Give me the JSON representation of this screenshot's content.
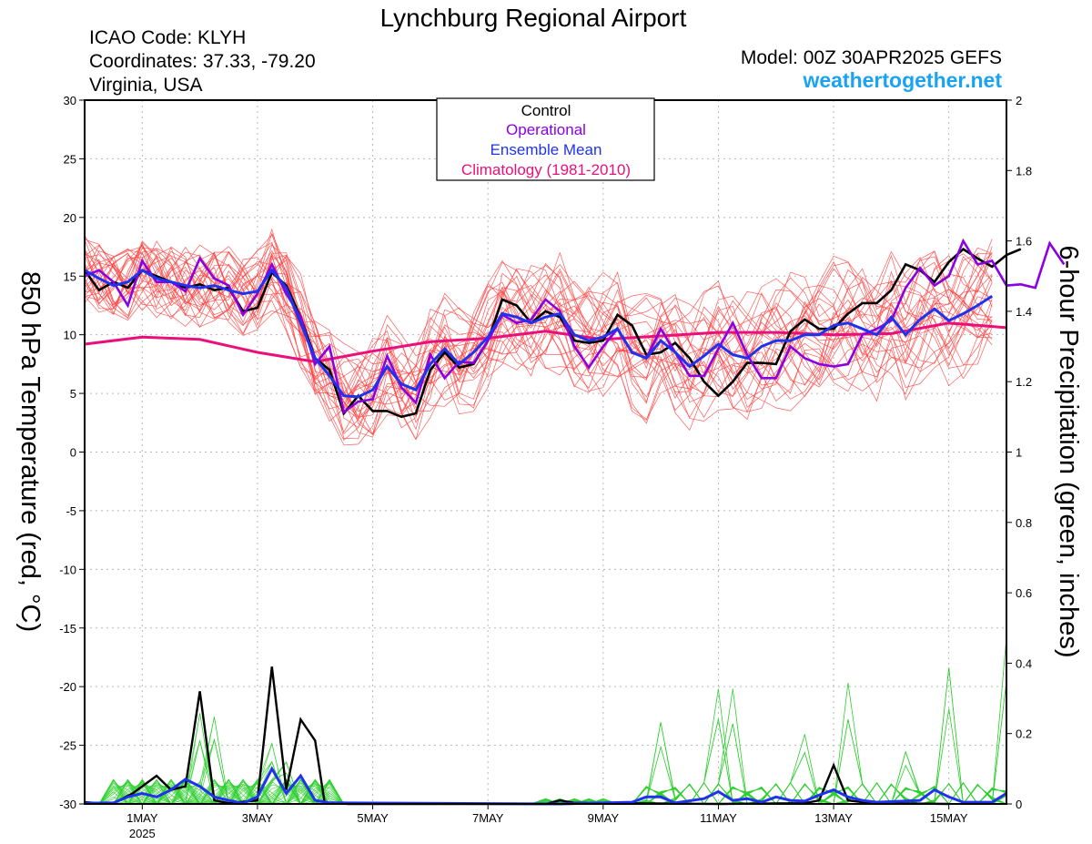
{
  "title": "Lynchburg Regional Airport",
  "station": {
    "icao_line": "ICAO Code: KLYH",
    "coords_line": "Coordinates: 37.33, -79.20",
    "region_line": "Virginia, USA"
  },
  "model_line": "Model: 00Z 30APR2025 GEFS",
  "site": "weathertogether.net",
  "chart_data": {
    "type": "line",
    "x_unit": "hours since 00Z 30APR2025",
    "x_range": [
      0,
      384
    ],
    "x_ticks": [
      {
        "x": 24,
        "label": "1MAY",
        "sub": "2025"
      },
      {
        "x": 72,
        "label": "3MAY",
        "sub": ""
      },
      {
        "x": 120,
        "label": "5MAY",
        "sub": ""
      },
      {
        "x": 168,
        "label": "7MAY",
        "sub": ""
      },
      {
        "x": 216,
        "label": "9MAY",
        "sub": ""
      },
      {
        "x": 264,
        "label": "11MAY",
        "sub": ""
      },
      {
        "x": 312,
        "label": "13MAY",
        "sub": ""
      },
      {
        "x": 360,
        "label": "15MAY",
        "sub": ""
      }
    ],
    "y_left": {
      "label": "850 hPa Temperature (red, °C)",
      "range": [
        -30,
        30
      ],
      "ticks": [
        -30,
        -25,
        -20,
        -15,
        -10,
        -5,
        0,
        5,
        10,
        15,
        20,
        25,
        30
      ]
    },
    "y_right": {
      "label": "6-hour Precipitation (green, inches)",
      "range": [
        0,
        2
      ],
      "ticks": [
        "0",
        "0.2",
        "0.4",
        "0.6",
        "0.8",
        "1",
        "1.2",
        "1.4",
        "1.6",
        "1.8",
        "2"
      ]
    },
    "legend": {
      "placement": "top-center",
      "entries": [
        {
          "name": "Control",
          "color": "#000000"
        },
        {
          "name": "Operational",
          "color": "#8b00e0"
        },
        {
          "name": "Ensemble Mean",
          "color": "#1f33ee"
        },
        {
          "name": "Climatology (1981-2010)",
          "color": "#ea0f7a"
        }
      ]
    },
    "grid": true,
    "colors": {
      "member_temp": "#ff4040",
      "member_precip": "#2ecf2e",
      "control": "#000000",
      "operational": "#8b00e0",
      "mean": "#1f33ee",
      "climatology": "#ea0f7a"
    },
    "temperature": {
      "step_hours": 6,
      "control": [
        15.5,
        13.8,
        14.5,
        14.0,
        15.5,
        15.0,
        14.5,
        14.0,
        14.3,
        13.8,
        14.0,
        12.0,
        12.3,
        15.3,
        14.2,
        11.5,
        8.0,
        7.0,
        3.3,
        4.8,
        3.5,
        3.5,
        3.0,
        3.3,
        7.0,
        8.5,
        7.2,
        7.5,
        9.5,
        13.0,
        12.5,
        11.0,
        12.0,
        11.5,
        9.5,
        9.3,
        9.5,
        11.7,
        10.8,
        8.3,
        8.5,
        9.3,
        8.0,
        6.0,
        4.8,
        6.0,
        7.6,
        7.6,
        7.5,
        10.3,
        11.3,
        10.5,
        10.5,
        11.8,
        12.7,
        12.7,
        13.8,
        16.0,
        15.5,
        14.5,
        16.2,
        17.3,
        16.5,
        15.8,
        16.8,
        17.3
      ],
      "operational": [
        15.0,
        15.5,
        14.5,
        12.5,
        16.3,
        14.5,
        14.5,
        13.7,
        16.5,
        14.8,
        14.2,
        11.7,
        13.5,
        16.0,
        13.5,
        11.5,
        7.5,
        9.0,
        3.4,
        4.3,
        4.5,
        8.2,
        5.5,
        4.2,
        8.3,
        6.3,
        7.7,
        7.6,
        9.5,
        11.7,
        11.0,
        11.3,
        13.0,
        12.0,
        9.0,
        7.2,
        9.0,
        10.5,
        8.5,
        8.0,
        10.5,
        8.5,
        6.5,
        6.5,
        8.8,
        11.0,
        8.3,
        6.3,
        6.3,
        9.0,
        8.0,
        7.5,
        7.3,
        7.5,
        10.0,
        10.5,
        11.2,
        14.0,
        15.7,
        14.2,
        15.0,
        18.0,
        16.0,
        16.3,
        14.2,
        14.3,
        14.0,
        17.8,
        16.0
      ],
      "mean": [
        15.5,
        14.8,
        14.2,
        14.5,
        15.5,
        14.8,
        14.5,
        14.2,
        14.0,
        14.2,
        13.8,
        13.5,
        13.7,
        15.5,
        14.0,
        11.0,
        8.0,
        6.5,
        4.8,
        4.7,
        5.3,
        7.3,
        5.8,
        5.3,
        7.5,
        8.8,
        7.5,
        8.5,
        9.8,
        11.8,
        11.5,
        11.0,
        11.5,
        11.8,
        10.0,
        9.5,
        9.8,
        10.5,
        8.5,
        8.0,
        9.5,
        8.5,
        7.3,
        8.2,
        9.2,
        8.3,
        8.0,
        9.0,
        9.5,
        9.5,
        10.0,
        10.0,
        10.8,
        11.0,
        10.5,
        10.0,
        11.5,
        10.0,
        11.3,
        12.2,
        11.2,
        11.8,
        12.5,
        13.3
      ],
      "climatology": [
        [
          0,
          9.2
        ],
        [
          24,
          9.8
        ],
        [
          48,
          9.6
        ],
        [
          72,
          8.5
        ],
        [
          96,
          7.7
        ],
        [
          120,
          8.6
        ],
        [
          144,
          9.4
        ],
        [
          168,
          9.7
        ],
        [
          192,
          10.3
        ],
        [
          216,
          9.6
        ],
        [
          240,
          9.9
        ],
        [
          264,
          10.2
        ],
        [
          288,
          10.2
        ],
        [
          312,
          10.0
        ],
        [
          336,
          10.1
        ],
        [
          360,
          11.0
        ],
        [
          384,
          10.6
        ]
      ]
    },
    "precipitation": {
      "control": [
        [
          0,
          0.005
        ],
        [
          4,
          0.003
        ],
        [
          12,
          0.002
        ],
        [
          20,
          0.03
        ],
        [
          30,
          0.08
        ],
        [
          36,
          0.04
        ],
        [
          42,
          0.05
        ],
        [
          48,
          0.32
        ],
        [
          54,
          0.01
        ],
        [
          60,
          0.002
        ],
        [
          72,
          0.01
        ],
        [
          78,
          0.39
        ],
        [
          84,
          0.04
        ],
        [
          90,
          0.24
        ],
        [
          96,
          0.18
        ],
        [
          100,
          0.002
        ],
        [
          110,
          0.0
        ],
        [
          192,
          0.0
        ],
        [
          198,
          0.01
        ],
        [
          204,
          0.003
        ],
        [
          264,
          0.0
        ],
        [
          300,
          0.002
        ],
        [
          306,
          0.01
        ],
        [
          312,
          0.11
        ],
        [
          318,
          0.01
        ],
        [
          324,
          0.005
        ],
        [
          330,
          0.002
        ],
        [
          360,
          0.0
        ]
      ],
      "mean": [
        [
          0,
          0.002
        ],
        [
          12,
          0.003
        ],
        [
          18,
          0.02
        ],
        [
          24,
          0.03
        ],
        [
          30,
          0.02
        ],
        [
          36,
          0.04
        ],
        [
          42,
          0.07
        ],
        [
          48,
          0.05
        ],
        [
          54,
          0.02
        ],
        [
          60,
          0.01
        ],
        [
          66,
          0.002
        ],
        [
          72,
          0.02
        ],
        [
          78,
          0.1
        ],
        [
          84,
          0.03
        ],
        [
          90,
          0.08
        ],
        [
          96,
          0.01
        ],
        [
          102,
          0.003
        ],
        [
          198,
          0.0
        ],
        [
          228,
          0.005
        ],
        [
          234,
          0.02
        ],
        [
          240,
          0.02
        ],
        [
          246,
          0.003
        ],
        [
          258,
          0.015
        ],
        [
          264,
          0.035
        ],
        [
          270,
          0.01
        ],
        [
          276,
          0.015
        ],
        [
          282,
          0.005
        ],
        [
          288,
          0.02
        ],
        [
          294,
          0.01
        ],
        [
          300,
          0.008
        ],
        [
          306,
          0.025
        ],
        [
          312,
          0.04
        ],
        [
          318,
          0.02
        ],
        [
          324,
          0.01
        ],
        [
          330,
          0.005
        ],
        [
          348,
          0.01
        ],
        [
          354,
          0.04
        ],
        [
          360,
          0.02
        ],
        [
          366,
          0.005
        ],
        [
          372,
          0.005
        ],
        [
          378,
          0.005
        ],
        [
          384,
          0.03
        ]
      ]
    }
  }
}
